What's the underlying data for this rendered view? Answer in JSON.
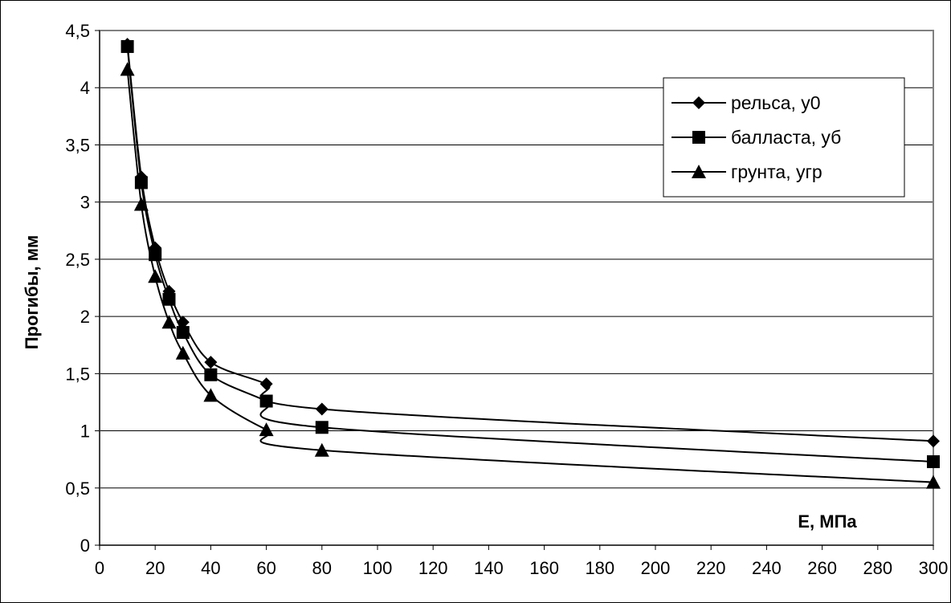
{
  "chart_data": {
    "type": "line",
    "title": "",
    "xlabel": "E, МПа",
    "ylabel": "Прогибы, мм",
    "xlim": [
      0,
      300
    ],
    "ylim": [
      0,
      4.5
    ],
    "grid": "horizontal",
    "legend_position": "top-right",
    "x": [
      10,
      15,
      20,
      25,
      30,
      40,
      60,
      80,
      300
    ],
    "x_ticks": [
      0,
      20,
      40,
      60,
      80,
      100,
      120,
      140,
      160,
      180,
      200,
      220,
      240,
      260,
      280,
      300
    ],
    "x_tick_labels": [
      "0",
      "20",
      "40",
      "60",
      "80",
      "100",
      "120",
      "140",
      "160",
      "180",
      "200",
      "220",
      "240",
      "260",
      "280",
      "300"
    ],
    "y_ticks": [
      0,
      0.5,
      1,
      1.5,
      2,
      2.5,
      3,
      3.5,
      4,
      4.5
    ],
    "y_tick_labels": [
      "0",
      "0,5",
      "1",
      "1,5",
      "2",
      "2,5",
      "3",
      "3,5",
      "4",
      "4,5"
    ],
    "series": [
      {
        "name": "рельса, у0",
        "marker": "diamond",
        "values": [
          4.38,
          3.22,
          2.6,
          2.22,
          1.95,
          1.6,
          1.41,
          1.19,
          0.91
        ]
      },
      {
        "name": "балласта, уб",
        "marker": "square",
        "values": [
          4.36,
          3.17,
          2.54,
          2.15,
          1.86,
          1.49,
          1.26,
          1.03,
          0.73
        ]
      },
      {
        "name": "грунта, угр",
        "marker": "triangle",
        "values": [
          4.16,
          2.98,
          2.35,
          1.95,
          1.68,
          1.31,
          1.01,
          0.83,
          0.55
        ]
      }
    ]
  }
}
